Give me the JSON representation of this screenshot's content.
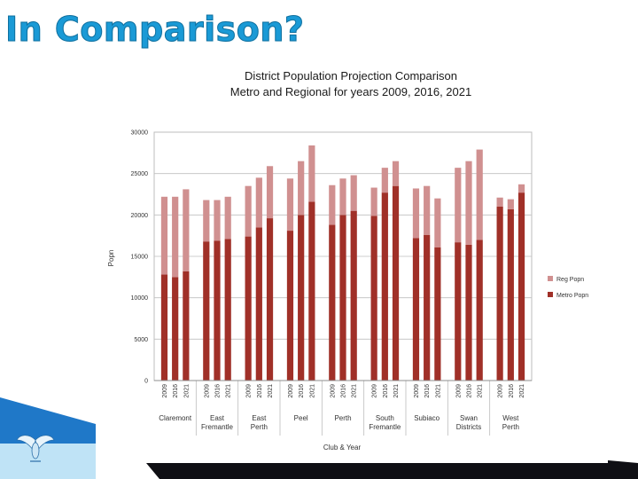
{
  "slide": {
    "title": "In Comparison?"
  },
  "colors": {
    "metro": "#a03028",
    "regional": "#d09090",
    "title": "#1a9ad6",
    "grid": "#bfbfbf",
    "decor_dark": "#0f0f14",
    "decor_blue": "#1f78c8"
  },
  "chart_data": {
    "type": "bar",
    "stacked": true,
    "title": "District Population Projection Comparison",
    "subtitle": "Metro and Regional for years 2009, 2016, 2021",
    "xlabel": "Club & Year",
    "ylabel": "Popn",
    "ylim": [
      0,
      30000
    ],
    "yticks": [
      "0",
      "5000",
      "10000",
      "15000",
      "20000",
      "25000",
      "30000"
    ],
    "grid": true,
    "legend_position": "right",
    "legend": [
      "Reg Popn",
      "Metro Popn"
    ],
    "groups": [
      {
        "label": "Claremont",
        "years": [
          "2009",
          "2016",
          "2021"
        ],
        "metro": [
          12800,
          12500,
          13200
        ],
        "reg": [
          9400,
          9700,
          9900
        ]
      },
      {
        "label": "East Fremantle",
        "years": [
          "2009",
          "2016",
          "2021"
        ],
        "metro": [
          16800,
          16900,
          17100
        ],
        "reg": [
          5000,
          4900,
          5100
        ]
      },
      {
        "label": "East Perth",
        "years": [
          "2009",
          "2016",
          "2021"
        ],
        "metro": [
          17400,
          18500,
          19600
        ],
        "reg": [
          6100,
          6000,
          6300
        ]
      },
      {
        "label": "Peel",
        "years": [
          "2009",
          "2016",
          "2021"
        ],
        "metro": [
          18100,
          20000,
          21600
        ],
        "reg": [
          6300,
          6500,
          6800
        ]
      },
      {
        "label": "Perth",
        "years": [
          "2009",
          "2016",
          "2021"
        ],
        "metro": [
          18800,
          20000,
          20500
        ],
        "reg": [
          4800,
          4400,
          4300
        ]
      },
      {
        "label": "South Fremantle",
        "years": [
          "2009",
          "2016",
          "2021"
        ],
        "metro": [
          19900,
          22700,
          23500
        ],
        "reg": [
          3400,
          3000,
          3000
        ]
      },
      {
        "label": "Subiaco",
        "years": [
          "2009",
          "2016",
          "2021"
        ],
        "metro": [
          17200,
          17600,
          16100
        ],
        "reg": [
          6000,
          5900,
          5900
        ]
      },
      {
        "label": "Swan Districts",
        "years": [
          "2009",
          "2016",
          "2021"
        ],
        "metro": [
          16700,
          16400,
          17000
        ],
        "reg": [
          9000,
          10100,
          10900
        ]
      },
      {
        "label": "West Perth",
        "years": [
          "2009",
          "2016",
          "2021"
        ],
        "metro": [
          21000,
          20700,
          22700
        ],
        "reg": [
          1100,
          1200,
          1000
        ]
      }
    ]
  }
}
